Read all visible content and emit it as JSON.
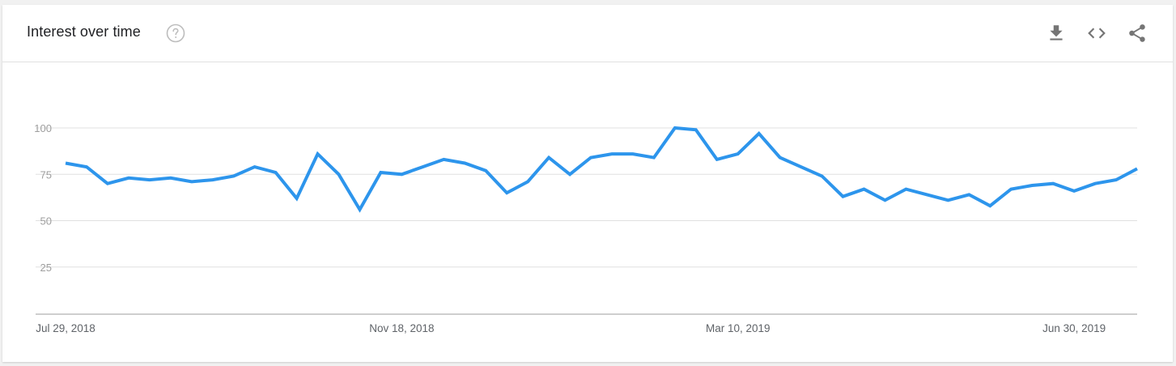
{
  "header": {
    "title": "Interest over time",
    "help_icon": "help-circle-icon",
    "tools": [
      {
        "name": "download-icon"
      },
      {
        "name": "embed-code-icon"
      },
      {
        "name": "share-icon"
      }
    ]
  },
  "colors": {
    "line": "#2d95ec",
    "grid": "#e0e0e0",
    "axis": "#bdbdbd",
    "tick_text": "#9e9e9e",
    "xtick_text": "#5f6368",
    "icon": "#757575"
  },
  "chart_data": {
    "type": "line",
    "title": "Interest over time",
    "xlabel": "",
    "ylabel": "",
    "ylim": [
      0,
      100
    ],
    "y_ticks": [
      25,
      50,
      75,
      100
    ],
    "grid": true,
    "x_tick_labels": [
      "Jul 29, 2018",
      "Nov 18, 2018",
      "Mar 10, 2019",
      "Jun 30, 2019"
    ],
    "x_tick_indices": [
      0,
      16,
      32,
      48
    ],
    "series": [
      {
        "values": [
          81,
          79,
          70,
          73,
          72,
          73,
          71,
          72,
          74,
          79,
          76,
          62,
          86,
          75,
          56,
          76,
          75,
          79,
          83,
          81,
          77,
          65,
          71,
          84,
          75,
          84,
          86,
          86,
          84,
          100,
          99,
          83,
          86,
          97,
          84,
          79,
          74,
          63,
          67,
          61,
          67,
          64,
          61,
          64,
          58,
          67,
          69,
          70,
          66,
          70,
          72,
          78
        ]
      }
    ]
  }
}
